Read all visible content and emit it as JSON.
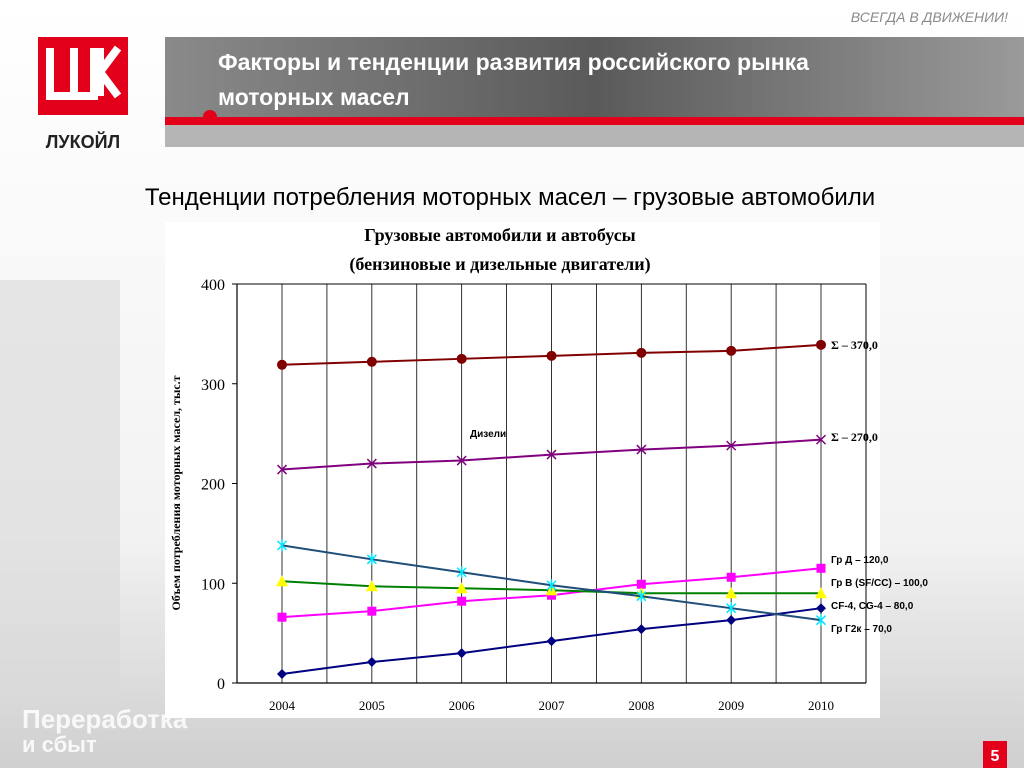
{
  "header": {
    "slogan": "ВСЕГДА В ДВИЖЕНИИ!",
    "title_lines": [
      "Факторы и тенденции развития российского рынка",
      "моторных масел"
    ],
    "logo_text": "ЛУКОЙЛ",
    "subtitle": "Тенденции потребления моторных масел – грузовые автомобили"
  },
  "footer": {
    "division_lines": [
      "Переработка",
      "и сбыт"
    ],
    "page_number": "5"
  },
  "chart_data": {
    "type": "line",
    "title": "Грузовые автомобили и автобусы",
    "subtitle": "(бензиновые и дизельные двигатели)",
    "y_label": "Объем потребления моторных масел, тыс.т",
    "annotation": "Дизели",
    "categories": [
      "2004",
      "2005",
      "2006",
      "2007",
      "2008",
      "2009",
      "2010"
    ],
    "ylim": [
      0,
      400
    ],
    "yticks": [
      0,
      100,
      200,
      300,
      400
    ],
    "series": [
      {
        "name": "Σ – 370,0",
        "color": "#800000",
        "marker": "circle",
        "marker_color": "#800000",
        "values": [
          319,
          322,
          325,
          328,
          331,
          333,
          339
        ]
      },
      {
        "name": "Σ – 270,0",
        "color": "#800080",
        "marker": "x",
        "marker_color": "#800080",
        "values": [
          214,
          220,
          223,
          229,
          234,
          238,
          244
        ]
      },
      {
        "name": "Гр Д – 120,0",
        "color": "#ff00ff",
        "marker": "square",
        "marker_color": "#ff00ff",
        "values": [
          66,
          72,
          82,
          88,
          99,
          106,
          115
        ]
      },
      {
        "name": "Гр В (SF/CC) – 100,0",
        "color": "#008000",
        "marker": "triangle",
        "marker_color": "#ffff00",
        "values": [
          102,
          97,
          95,
          93,
          90,
          90,
          90
        ]
      },
      {
        "name": "CF-4, CG-4 – 80,0",
        "color": "#000080",
        "marker": "diamond",
        "marker_color": "#000080",
        "values": [
          9,
          21,
          30,
          42,
          54,
          63,
          75
        ]
      },
      {
        "name": "Гр Г2к – 70,0",
        "color": "#1f4e79",
        "marker": "star",
        "marker_color": "#00e5ff",
        "values": [
          138,
          124,
          111,
          98,
          87,
          75,
          63
        ]
      }
    ]
  }
}
